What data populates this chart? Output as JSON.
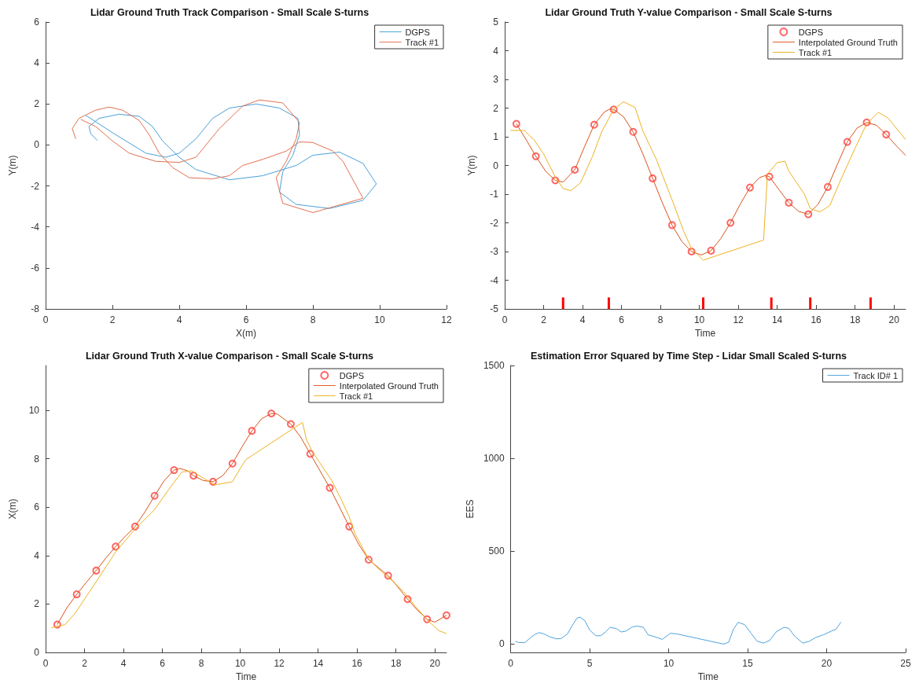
{
  "chart_data": [
    {
      "type": "line",
      "title": "Lidar Ground Truth Track Comparison - Small Scale S-turns",
      "xlabel": "X(m)",
      "ylabel": "Y(m)",
      "xlim": [
        0,
        12
      ],
      "ylim": [
        -8,
        6
      ],
      "xticks": [
        0,
        2,
        4,
        6,
        8,
        10,
        12
      ],
      "yticks": [
        -8,
        -6,
        -4,
        -2,
        0,
        2,
        4,
        6
      ],
      "legend": "top right",
      "series": [
        {
          "name": "DGPS",
          "color": "#4a9fd8",
          "x": [
            1.55,
            1.35,
            1.3,
            1.6,
            2.2,
            2.8,
            3.2,
            3.5,
            4.0,
            4.5,
            5.5,
            6.5,
            7.5,
            8.0,
            8.8,
            9.5,
            9.9,
            9.5,
            8.5,
            7.5,
            7.0,
            7.1,
            7.4,
            7.6,
            7.55,
            7.0,
            6.3,
            5.5,
            5.0,
            4.5,
            4.0,
            3.6,
            3.0,
            2.0,
            1.2
          ],
          "values": [
            0.22,
            0.55,
            0.9,
            1.3,
            1.5,
            1.4,
            0.9,
            0.2,
            -0.6,
            -1.2,
            -1.7,
            -1.5,
            -1.0,
            -0.5,
            -0.35,
            -0.9,
            -1.9,
            -2.7,
            -3.1,
            -2.9,
            -2.3,
            -1.3,
            -0.5,
            0.5,
            1.3,
            1.8,
            2.0,
            1.8,
            1.3,
            0.3,
            -0.4,
            -0.6,
            -0.4,
            0.6,
            1.45
          ]
        },
        {
          "name": "Track #1",
          "color": "#e07050",
          "x": [
            0.9,
            0.8,
            1.0,
            1.5,
            1.9,
            2.3,
            2.8,
            3.1,
            3.4,
            3.8,
            4.3,
            5.0,
            5.5,
            5.9,
            6.5,
            7.2,
            7.6,
            8.0,
            8.6,
            8.9,
            9.5,
            8.0,
            7.1,
            6.9,
            7.2,
            7.5,
            7.6,
            7.1,
            6.4,
            5.9,
            5.2,
            4.5,
            4.0,
            3.3,
            2.5,
            2.0,
            1.5,
            1.05
          ],
          "values": [
            0.3,
            0.8,
            1.3,
            1.7,
            1.85,
            1.7,
            1.2,
            0.5,
            -0.4,
            -1.1,
            -1.6,
            -1.65,
            -1.5,
            -1.0,
            -0.7,
            -0.3,
            0.15,
            0.12,
            -0.3,
            -0.8,
            -2.6,
            -3.3,
            -2.85,
            -1.6,
            -0.8,
            0.3,
            1.1,
            2.05,
            2.2,
            1.9,
            0.8,
            -0.6,
            -0.85,
            -0.8,
            -0.4,
            0.2,
            0.9,
            1.25
          ]
        }
      ]
    },
    {
      "type": "line",
      "title": "Lidar Ground Truth Y-value Comparison - Small Scale S-turns",
      "xlabel": "Time",
      "ylabel": "Y(m)",
      "xlim": [
        0,
        20.6
      ],
      "ylim": [
        -5,
        5
      ],
      "xticks": [
        0,
        2,
        4,
        6,
        8,
        10,
        12,
        14,
        16,
        18,
        20
      ],
      "yticks": [
        -5,
        -4,
        -3,
        -2,
        -1,
        0,
        1,
        2,
        3,
        4,
        5
      ],
      "legend": "top right",
      "series": [
        {
          "name": "DGPS",
          "type": "scatter",
          "marker": "circle",
          "color": "#ff4040",
          "x": [
            0.6,
            1.6,
            2.6,
            3.6,
            4.6,
            5.6,
            6.6,
            7.6,
            8.6,
            9.6,
            10.6,
            11.6,
            12.6,
            13.6,
            14.6,
            15.6,
            16.6,
            17.6,
            18.6,
            19.6
          ],
          "values": [
            1.45,
            0.32,
            -0.52,
            -0.15,
            1.42,
            1.95,
            1.17,
            -0.45,
            -2.08,
            -3.0,
            -2.97,
            -2.0,
            -0.77,
            -0.39,
            -1.3,
            -1.7,
            -0.75,
            0.82,
            1.5,
            1.08
          ]
        },
        {
          "name": "Interpolated Ground Truth",
          "color": "#d95319",
          "x": [
            0.6,
            1.1,
            1.6,
            2.1,
            2.6,
            3.0,
            3.6,
            4.1,
            4.6,
            5.1,
            5.4,
            5.6,
            6.1,
            6.6,
            7.1,
            7.6,
            8.1,
            8.6,
            9.1,
            9.6,
            10.1,
            10.6,
            11.1,
            11.6,
            12.1,
            12.6,
            13.1,
            13.4,
            13.6,
            14.1,
            14.6,
            15.1,
            15.6,
            16.1,
            16.6,
            17.1,
            17.6,
            18.1,
            18.6,
            19.1,
            19.6,
            20.1,
            20.6
          ],
          "values": [
            1.45,
            0.9,
            0.32,
            -0.2,
            -0.52,
            -0.58,
            -0.15,
            0.65,
            1.42,
            1.85,
            1.97,
            1.95,
            1.7,
            1.17,
            0.4,
            -0.45,
            -1.3,
            -2.08,
            -2.65,
            -3.0,
            -3.12,
            -2.97,
            -2.55,
            -2.0,
            -1.35,
            -0.77,
            -0.42,
            -0.35,
            -0.39,
            -0.85,
            -1.3,
            -1.6,
            -1.7,
            -1.35,
            -0.75,
            0.05,
            0.82,
            1.3,
            1.5,
            1.4,
            1.08,
            0.7,
            0.35
          ]
        },
        {
          "name": "Track #1",
          "color": "#edb120",
          "x": [
            0.3,
            1.0,
            1.5,
            2.0,
            2.6,
            3.0,
            3.4,
            3.9,
            4.5,
            5.0,
            5.6,
            6.1,
            6.7,
            7.1,
            7.8,
            8.6,
            9.2,
            9.6,
            10.2,
            13.3,
            13.5,
            14.0,
            14.4,
            14.6,
            15.0,
            15.4,
            15.7,
            16.2,
            16.7,
            17.2,
            18.0,
            18.6,
            19.2,
            19.7,
            20.6
          ],
          "values": [
            1.22,
            1.22,
            0.9,
            0.4,
            -0.4,
            -0.8,
            -0.88,
            -0.6,
            0.3,
            1.2,
            1.95,
            2.22,
            2.02,
            1.2,
            0.2,
            -1.2,
            -2.3,
            -2.9,
            -3.3,
            -2.6,
            -0.3,
            0.1,
            0.15,
            -0.2,
            -0.6,
            -1.0,
            -1.5,
            -1.62,
            -1.4,
            -0.6,
            0.6,
            1.45,
            1.85,
            1.65,
            0.9
          ]
        },
        {
          "type": "bar",
          "color": "#ff0000",
          "x": [
            3.0,
            5.35,
            10.2,
            13.7,
            15.7,
            18.8
          ],
          "base": [
            -5,
            -5,
            -5,
            -5,
            -5,
            -5
          ],
          "values": [
            0.4,
            0.4,
            0.4,
            0.4,
            0.4,
            0.4
          ]
        }
      ]
    },
    {
      "type": "line",
      "title": "Lidar Ground Truth X-value Comparison - Small Scale S-turns",
      "xlabel": "Time",
      "ylabel": "X(m)",
      "xlim": [
        0,
        20.6
      ],
      "ylim": [
        0,
        11.85
      ],
      "xticks": [
        0,
        2,
        4,
        6,
        8,
        10,
        12,
        14,
        16,
        18,
        20
      ],
      "yticks": [
        0,
        2,
        4,
        6,
        8,
        10
      ],
      "legend": "top right",
      "series": [
        {
          "name": "DGPS",
          "type": "scatter",
          "marker": "circle",
          "color": "#ff4040",
          "x": [
            0.6,
            1.6,
            2.6,
            3.6,
            4.6,
            5.6,
            6.6,
            7.6,
            8.6,
            9.6,
            10.6,
            11.6,
            12.6,
            13.6,
            14.6,
            15.6,
            16.6,
            17.6,
            18.6,
            19.6,
            20.6
          ],
          "values": [
            1.15,
            2.4,
            3.38,
            4.37,
            5.2,
            6.47,
            7.53,
            7.3,
            7.05,
            7.8,
            9.15,
            9.87,
            9.43,
            8.2,
            6.8,
            5.2,
            3.83,
            3.17,
            2.2,
            1.37,
            1.53
          ]
        },
        {
          "name": "Interpolated Ground Truth",
          "color": "#d95319",
          "x": [
            0.6,
            1.1,
            1.6,
            2.1,
            2.6,
            3.1,
            3.6,
            4.1,
            4.6,
            5.1,
            5.6,
            6.1,
            6.6,
            6.9,
            7.3,
            7.6,
            8.1,
            8.6,
            9.1,
            9.6,
            10.1,
            10.6,
            11.1,
            11.6,
            11.9,
            12.6,
            13.1,
            13.6,
            14.1,
            14.6,
            15.1,
            15.6,
            16.1,
            16.6,
            17.1,
            17.6,
            18.1,
            18.6,
            19.1,
            19.6,
            20.0,
            20.6
          ],
          "values": [
            1.15,
            1.85,
            2.4,
            2.9,
            3.38,
            3.9,
            4.37,
            4.8,
            5.2,
            5.8,
            6.47,
            7.1,
            7.53,
            7.6,
            7.5,
            7.3,
            7.1,
            7.05,
            7.3,
            7.8,
            8.5,
            9.15,
            9.65,
            9.87,
            9.85,
            9.43,
            8.9,
            8.2,
            7.5,
            6.8,
            6.0,
            5.2,
            4.45,
            3.83,
            3.5,
            3.17,
            2.7,
            2.2,
            1.75,
            1.37,
            1.25,
            1.53
          ]
        },
        {
          "name": "Track #1",
          "color": "#edb120",
          "x": [
            0.3,
            1.0,
            1.5,
            2.5,
            3.6,
            4.6,
            5.6,
            6.3,
            7.0,
            7.5,
            8.0,
            8.7,
            9.6,
            10.0,
            10.3,
            13.2,
            13.4,
            13.7,
            14.2,
            14.7,
            15.2,
            15.6,
            15.9,
            16.6,
            17.3,
            17.9,
            18.4,
            19.0,
            19.6,
            20.2,
            20.6
          ],
          "values": [
            1.02,
            1.15,
            1.6,
            2.8,
            4.15,
            5.1,
            5.9,
            6.7,
            7.45,
            7.5,
            7.25,
            6.92,
            7.05,
            7.6,
            7.97,
            9.5,
            8.8,
            8.3,
            7.7,
            7.1,
            6.3,
            5.6,
            4.9,
            3.85,
            3.3,
            2.9,
            2.5,
            1.9,
            1.35,
            0.9,
            0.78
          ]
        }
      ]
    },
    {
      "type": "line",
      "title": "Estimation Error Squared by Time Step - Lidar Small Scaled S-turns",
      "xlabel": "Time",
      "ylabel": "EES",
      "xlim": [
        0,
        25
      ],
      "ylim": [
        -45,
        1500
      ],
      "xticks": [
        0,
        5,
        10,
        15,
        20,
        25
      ],
      "yticks": [
        0,
        500,
        1000,
        1500
      ],
      "legend": "top right",
      "series": [
        {
          "name": "Track ID# 1",
          "color": "#4da3dc",
          "x": [
            0.3,
            0.5,
            0.9,
            1.2,
            1.5,
            1.8,
            2.1,
            2.5,
            2.9,
            3.2,
            3.6,
            3.9,
            4.2,
            4.4,
            4.7,
            5.0,
            5.4,
            5.7,
            6.0,
            6.3,
            6.7,
            7.0,
            7.3,
            7.7,
            8.0,
            8.4,
            8.7,
            9.1,
            9.6,
            10.1,
            10.5,
            13.2,
            13.5,
            13.8,
            14.1,
            14.4,
            14.8,
            15.2,
            15.6,
            16.0,
            16.4,
            16.8,
            17.3,
            17.6,
            18.0,
            18.5,
            18.9,
            19.3,
            19.8,
            20.3,
            20.6,
            20.9
          ],
          "values": [
            15,
            8,
            8,
            30,
            50,
            62,
            55,
            38,
            28,
            30,
            55,
            100,
            140,
            145,
            125,
            75,
            45,
            45,
            65,
            90,
            83,
            65,
            70,
            92,
            97,
            90,
            50,
            40,
            25,
            58,
            55,
            5,
            0,
            10,
            80,
            117,
            105,
            60,
            15,
            5,
            20,
            65,
            90,
            85,
            40,
            5,
            15,
            35,
            50,
            70,
            80,
            118
          ]
        }
      ]
    }
  ]
}
